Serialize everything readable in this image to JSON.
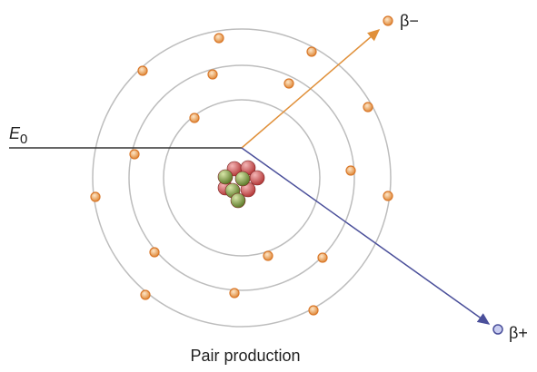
{
  "labels": {
    "incident": "E",
    "incident_subscript": "0",
    "electron": "β−",
    "positron": "β+",
    "caption": "Pair production"
  }
}
